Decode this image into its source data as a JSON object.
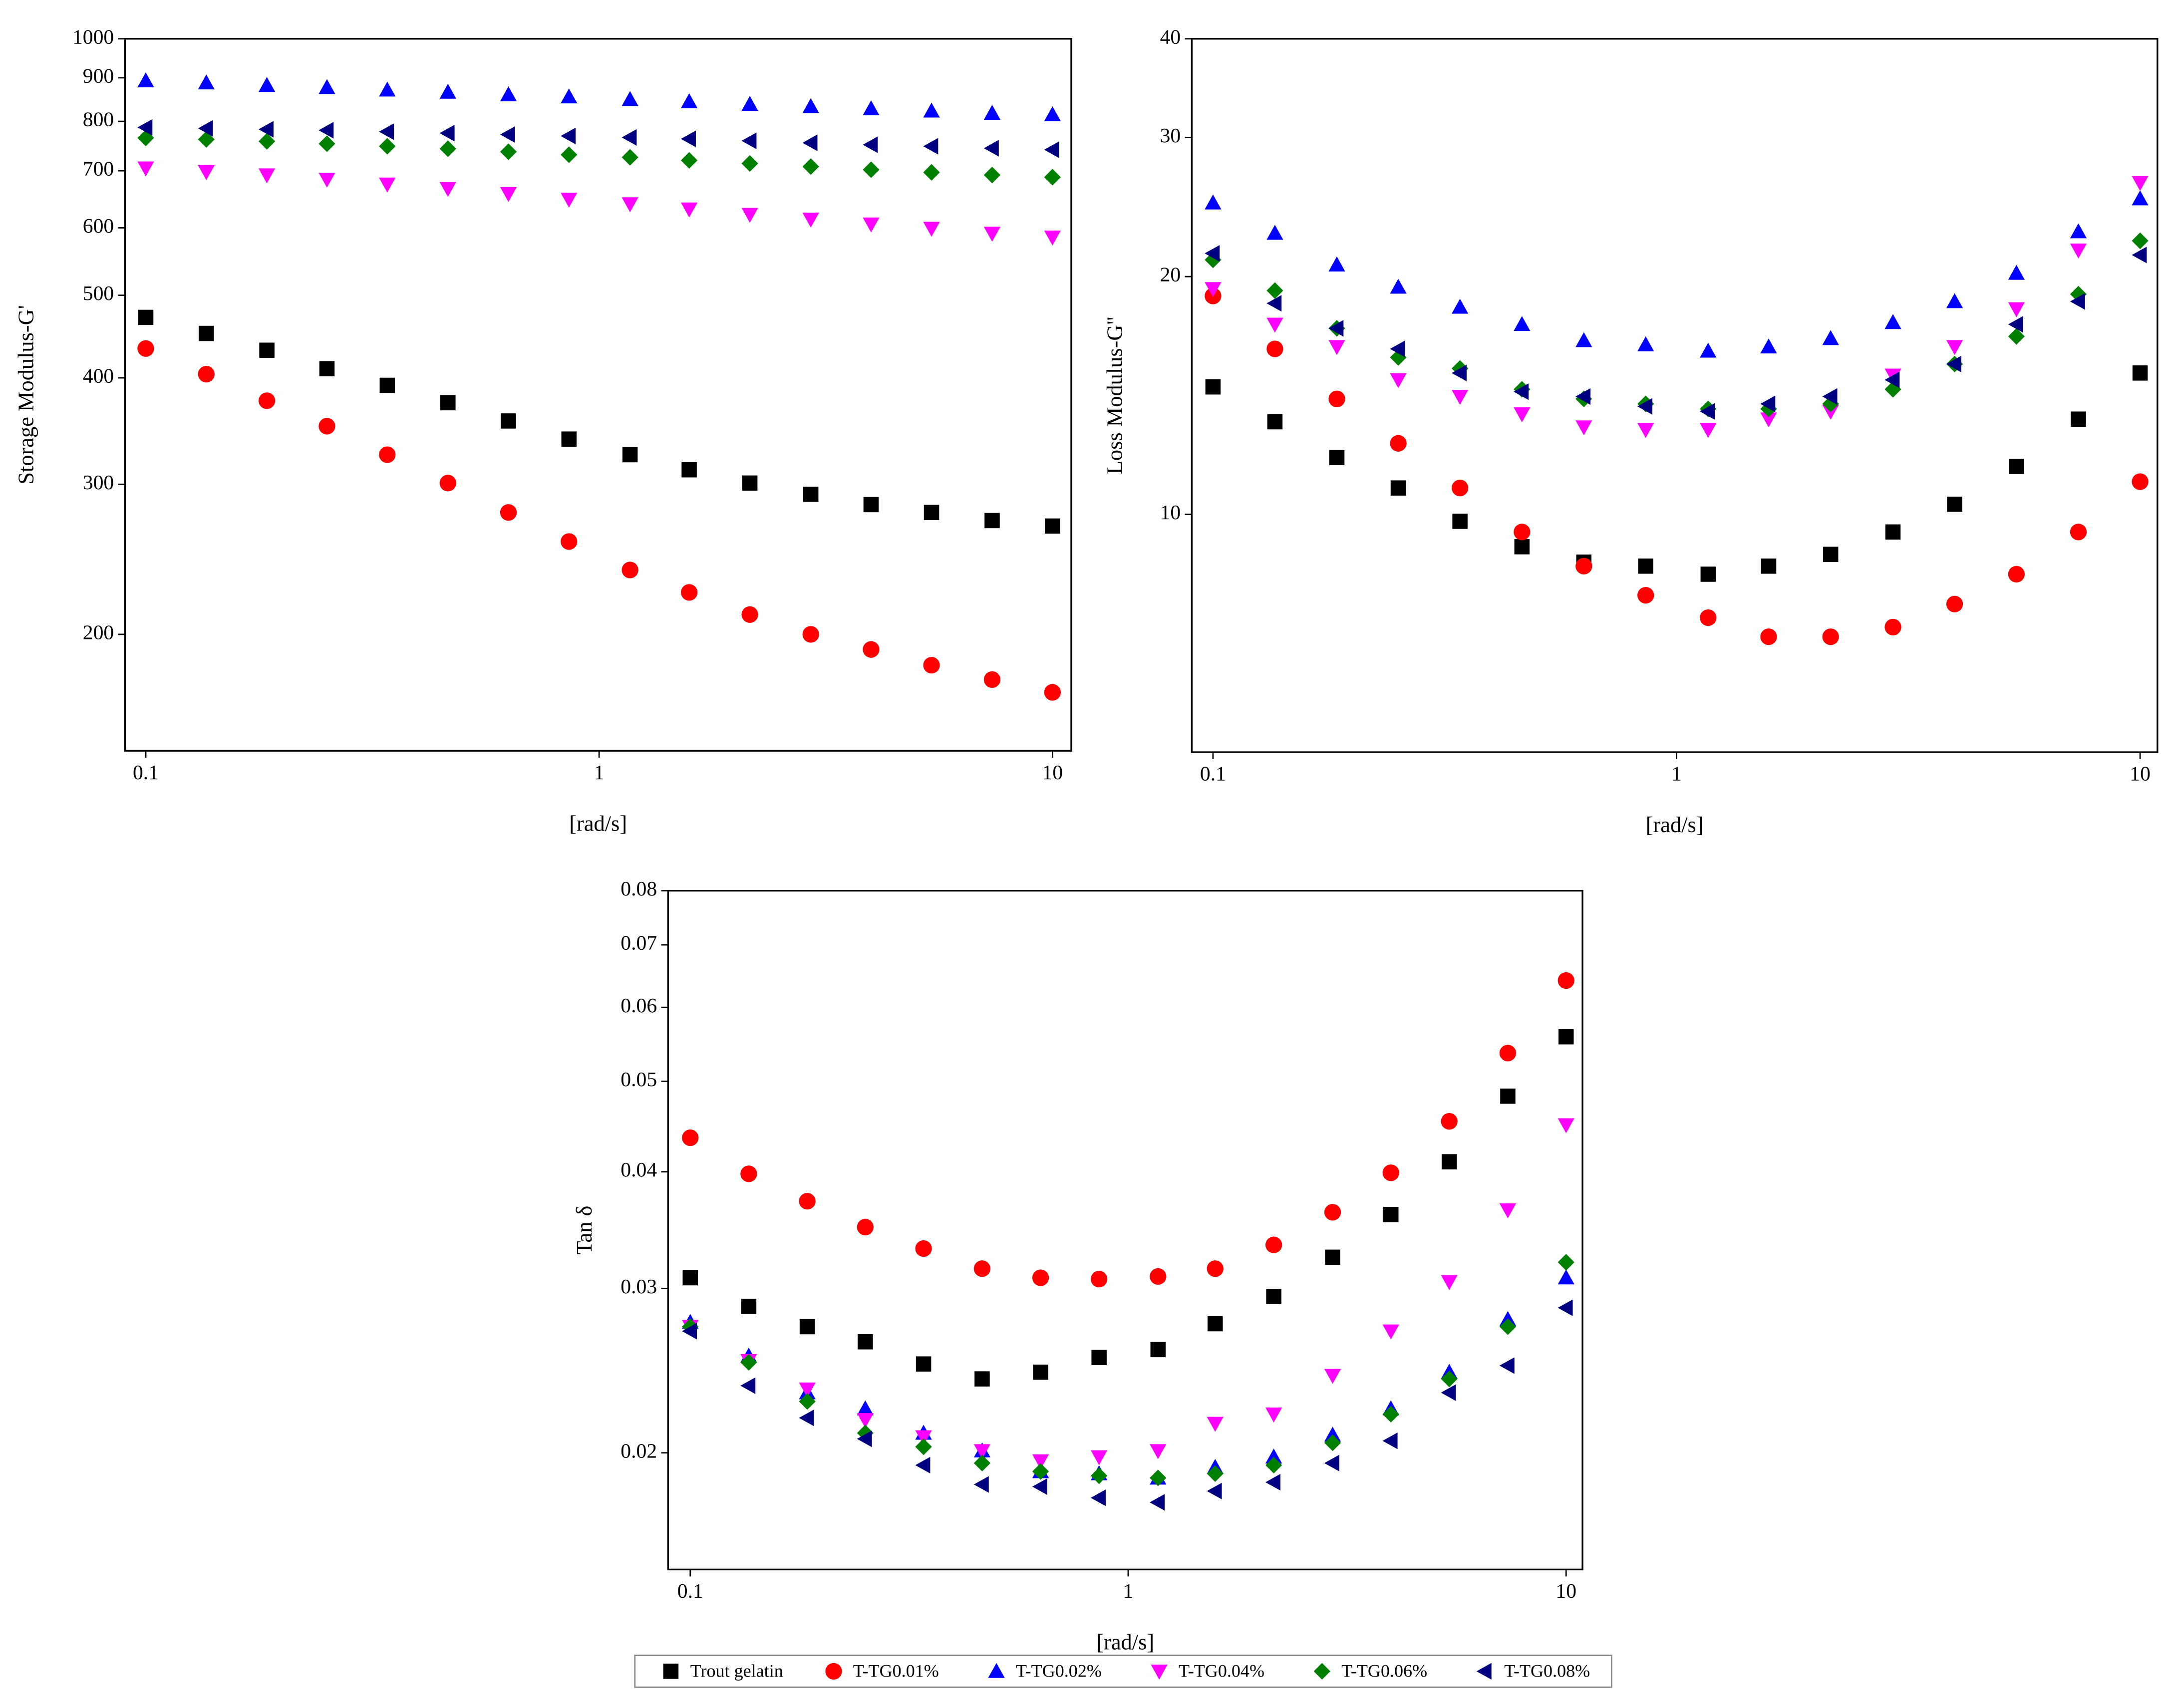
{
  "chart_data": [
    {
      "type": "scatter",
      "ylabel": "Storage Modulus-G'",
      "xlabel": "[rad/s]",
      "xscale": "log",
      "yscale": "log",
      "xlim": [
        0.09,
        11
      ],
      "ylim": [
        146,
        1000
      ],
      "xticks": [
        0.1,
        1,
        10
      ],
      "yticks": [
        200,
        300,
        400,
        500,
        600,
        700,
        800,
        900,
        1000
      ],
      "x": [
        0.1,
        0.136,
        0.185,
        0.251,
        0.341,
        0.464,
        0.631,
        0.858,
        1.17,
        1.58,
        2.15,
        2.93,
        3.98,
        5.41,
        7.36,
        10
      ],
      "series": [
        {
          "name": "Trout gelatin",
          "color": "#000000",
          "marker": "square",
          "values": [
            471,
            451,
            431,
            410,
            392,
            374,
            356,
            339,
            325,
            312,
            301,
            292,
            284,
            278,
            272,
            268
          ]
        },
        {
          "name": "T-TG0.01%",
          "color": "#ff0000",
          "marker": "circle",
          "values": [
            433,
            404,
            376,
            351,
            325,
            301,
            278,
            257,
            238,
            224,
            211,
            200,
            192,
            184,
            177,
            171
          ]
        },
        {
          "name": "T-TG0.02%",
          "color": "#0000ff",
          "marker": "triangle-up",
          "values": [
            893,
            888,
            882,
            877,
            871,
            866,
            860,
            855,
            849,
            844,
            838,
            833,
            828,
            823,
            818,
            815
          ]
        },
        {
          "name": "T-TG0.04%",
          "color": "#ff00ff",
          "marker": "triangle-down",
          "values": [
            705,
            698,
            692,
            684,
            675,
            667,
            658,
            648,
            640,
            631,
            622,
            614,
            606,
            599,
            591,
            585
          ]
        },
        {
          "name": "T-TG0.06%",
          "color": "#008000",
          "marker": "diamond",
          "values": [
            765,
            762,
            758,
            753,
            748,
            743,
            737,
            731,
            726,
            720,
            714,
            708,
            702,
            697,
            692,
            688
          ]
        },
        {
          "name": "T-TG0.08%",
          "color": "#000080",
          "marker": "triangle-left",
          "values": [
            787,
            785,
            783,
            781,
            778,
            775,
            772,
            769,
            766,
            763,
            759,
            755,
            751,
            748,
            744,
            741
          ]
        }
      ]
    },
    {
      "type": "scatter",
      "ylabel": "Loss Modulus-G''",
      "xlabel": "[rad/s]",
      "xscale": "log",
      "yscale": "log",
      "xlim": [
        0.09,
        10.9
      ],
      "ylim": [
        5,
        40
      ],
      "xticks": [
        0.1,
        1,
        10
      ],
      "yticks": [
        10,
        20,
        30,
        40
      ],
      "x": [
        0.1,
        0.136,
        0.185,
        0.251,
        0.341,
        0.464,
        0.631,
        0.858,
        1.17,
        1.58,
        2.15,
        2.93,
        3.98,
        5.41,
        7.36,
        10
      ],
      "series": [
        {
          "name": "Trout gelatin",
          "color": "#000000",
          "marker": "square",
          "values": [
            14.5,
            13.1,
            11.8,
            10.8,
            9.8,
            9.1,
            8.7,
            8.6,
            8.4,
            8.6,
            8.9,
            9.5,
            10.3,
            11.5,
            13.2,
            15.1
          ]
        },
        {
          "name": "T-TG0.01%",
          "color": "#ff0000",
          "marker": "circle",
          "values": [
            18.9,
            16.2,
            14.0,
            12.3,
            10.8,
            9.5,
            8.6,
            7.9,
            7.4,
            7.0,
            7.0,
            7.2,
            7.7,
            8.4,
            9.5,
            11.0
          ]
        },
        {
          "name": "T-TG0.02%",
          "color": "#0000ff",
          "marker": "triangle-up",
          "values": [
            24.8,
            22.7,
            20.7,
            19.4,
            18.3,
            17.4,
            16.6,
            16.4,
            16.1,
            16.3,
            16.7,
            17.5,
            18.6,
            20.2,
            22.8,
            25.1
          ]
        },
        {
          "name": "T-TG0.04%",
          "color": "#ff00ff",
          "marker": "triangle-down",
          "values": [
            19.3,
            17.4,
            16.3,
            14.8,
            14.1,
            13.4,
            12.9,
            12.8,
            12.8,
            13.2,
            13.5,
            15.0,
            16.3,
            18.2,
            21.6,
            26.3
          ]
        },
        {
          "name": "T-TG0.06%",
          "color": "#008000",
          "marker": "diamond",
          "values": [
            21.0,
            19.2,
            17.2,
            15.8,
            15.3,
            14.4,
            14.0,
            13.8,
            13.6,
            13.6,
            13.8,
            14.4,
            15.5,
            16.8,
            19.0,
            22.2
          ]
        },
        {
          "name": "T-TG0.08%",
          "color": "#000080",
          "marker": "triangle-left",
          "values": [
            21.4,
            18.5,
            17.2,
            16.2,
            15.1,
            14.3,
            14.1,
            13.7,
            13.5,
            13.8,
            14.1,
            14.8,
            15.5,
            17.4,
            18.6,
            21.3
          ]
        }
      ]
    },
    {
      "type": "scatter",
      "ylabel": "Tan δ",
      "xlabel": "[rad/s]",
      "xscale": "log",
      "yscale": "log",
      "legend": "bottom",
      "xlim": [
        0.089,
        10.9
      ],
      "ylim": [
        0.015,
        0.08
      ],
      "xticks": [
        0.1,
        1,
        10
      ],
      "yticks": [
        0.02,
        0.03,
        0.04,
        0.05,
        0.06,
        0.07,
        0.08
      ],
      "x": [
        0.1,
        0.136,
        0.185,
        0.251,
        0.341,
        0.464,
        0.631,
        0.858,
        1.17,
        1.58,
        2.15,
        2.93,
        3.98,
        5.41,
        7.36,
        10
      ],
      "series": [
        {
          "name": "Trout gelatin",
          "color": "#000000",
          "marker": "square",
          "values": [
            0.0308,
            0.0287,
            0.0273,
            0.0263,
            0.0249,
            0.024,
            0.0244,
            0.0253,
            0.0258,
            0.0275,
            0.0294,
            0.0324,
            0.036,
            0.041,
            0.0482,
            0.0558
          ]
        },
        {
          "name": "T-TG0.01%",
          "color": "#ff0000",
          "marker": "circle",
          "values": [
            0.0435,
            0.0398,
            0.0372,
            0.0349,
            0.0331,
            0.0315,
            0.0308,
            0.0307,
            0.0309,
            0.0315,
            0.0334,
            0.0362,
            0.0399,
            0.0453,
            0.0536,
            0.0641
          ]
        },
        {
          "name": "T-TG0.02%",
          "color": "#0000ff",
          "marker": "triangle-up",
          "values": [
            0.0276,
            0.0254,
            0.0232,
            0.0223,
            0.021,
            0.0201,
            0.0191,
            0.019,
            0.0188,
            0.0193,
            0.0198,
            0.0209,
            0.0223,
            0.0244,
            0.0278,
            0.0308
          ]
        },
        {
          "name": "T-TG0.04%",
          "color": "#ff00ff",
          "marker": "triangle-down",
          "values": [
            0.0273,
            0.0251,
            0.0234,
            0.0217,
            0.0208,
            0.0201,
            0.0196,
            0.0198,
            0.0201,
            0.0215,
            0.022,
            0.0242,
            0.027,
            0.0305,
            0.0364,
            0.0449
          ]
        },
        {
          "name": "T-TG0.06%",
          "color": "#008000",
          "marker": "diamond",
          "values": [
            0.0273,
            0.025,
            0.0227,
            0.021,
            0.0203,
            0.0195,
            0.0191,
            0.0189,
            0.0188,
            0.019,
            0.0194,
            0.0205,
            0.022,
            0.024,
            0.0273,
            0.032
          ]
        },
        {
          "name": "T-TG0.08%",
          "color": "#000080",
          "marker": "triangle-left",
          "values": [
            0.027,
            0.0236,
            0.0218,
            0.0207,
            0.0194,
            0.0185,
            0.0184,
            0.0179,
            0.0177,
            0.0182,
            0.0186,
            0.0195,
            0.0206,
            0.0232,
            0.0248,
            0.0286
          ]
        }
      ]
    }
  ]
}
